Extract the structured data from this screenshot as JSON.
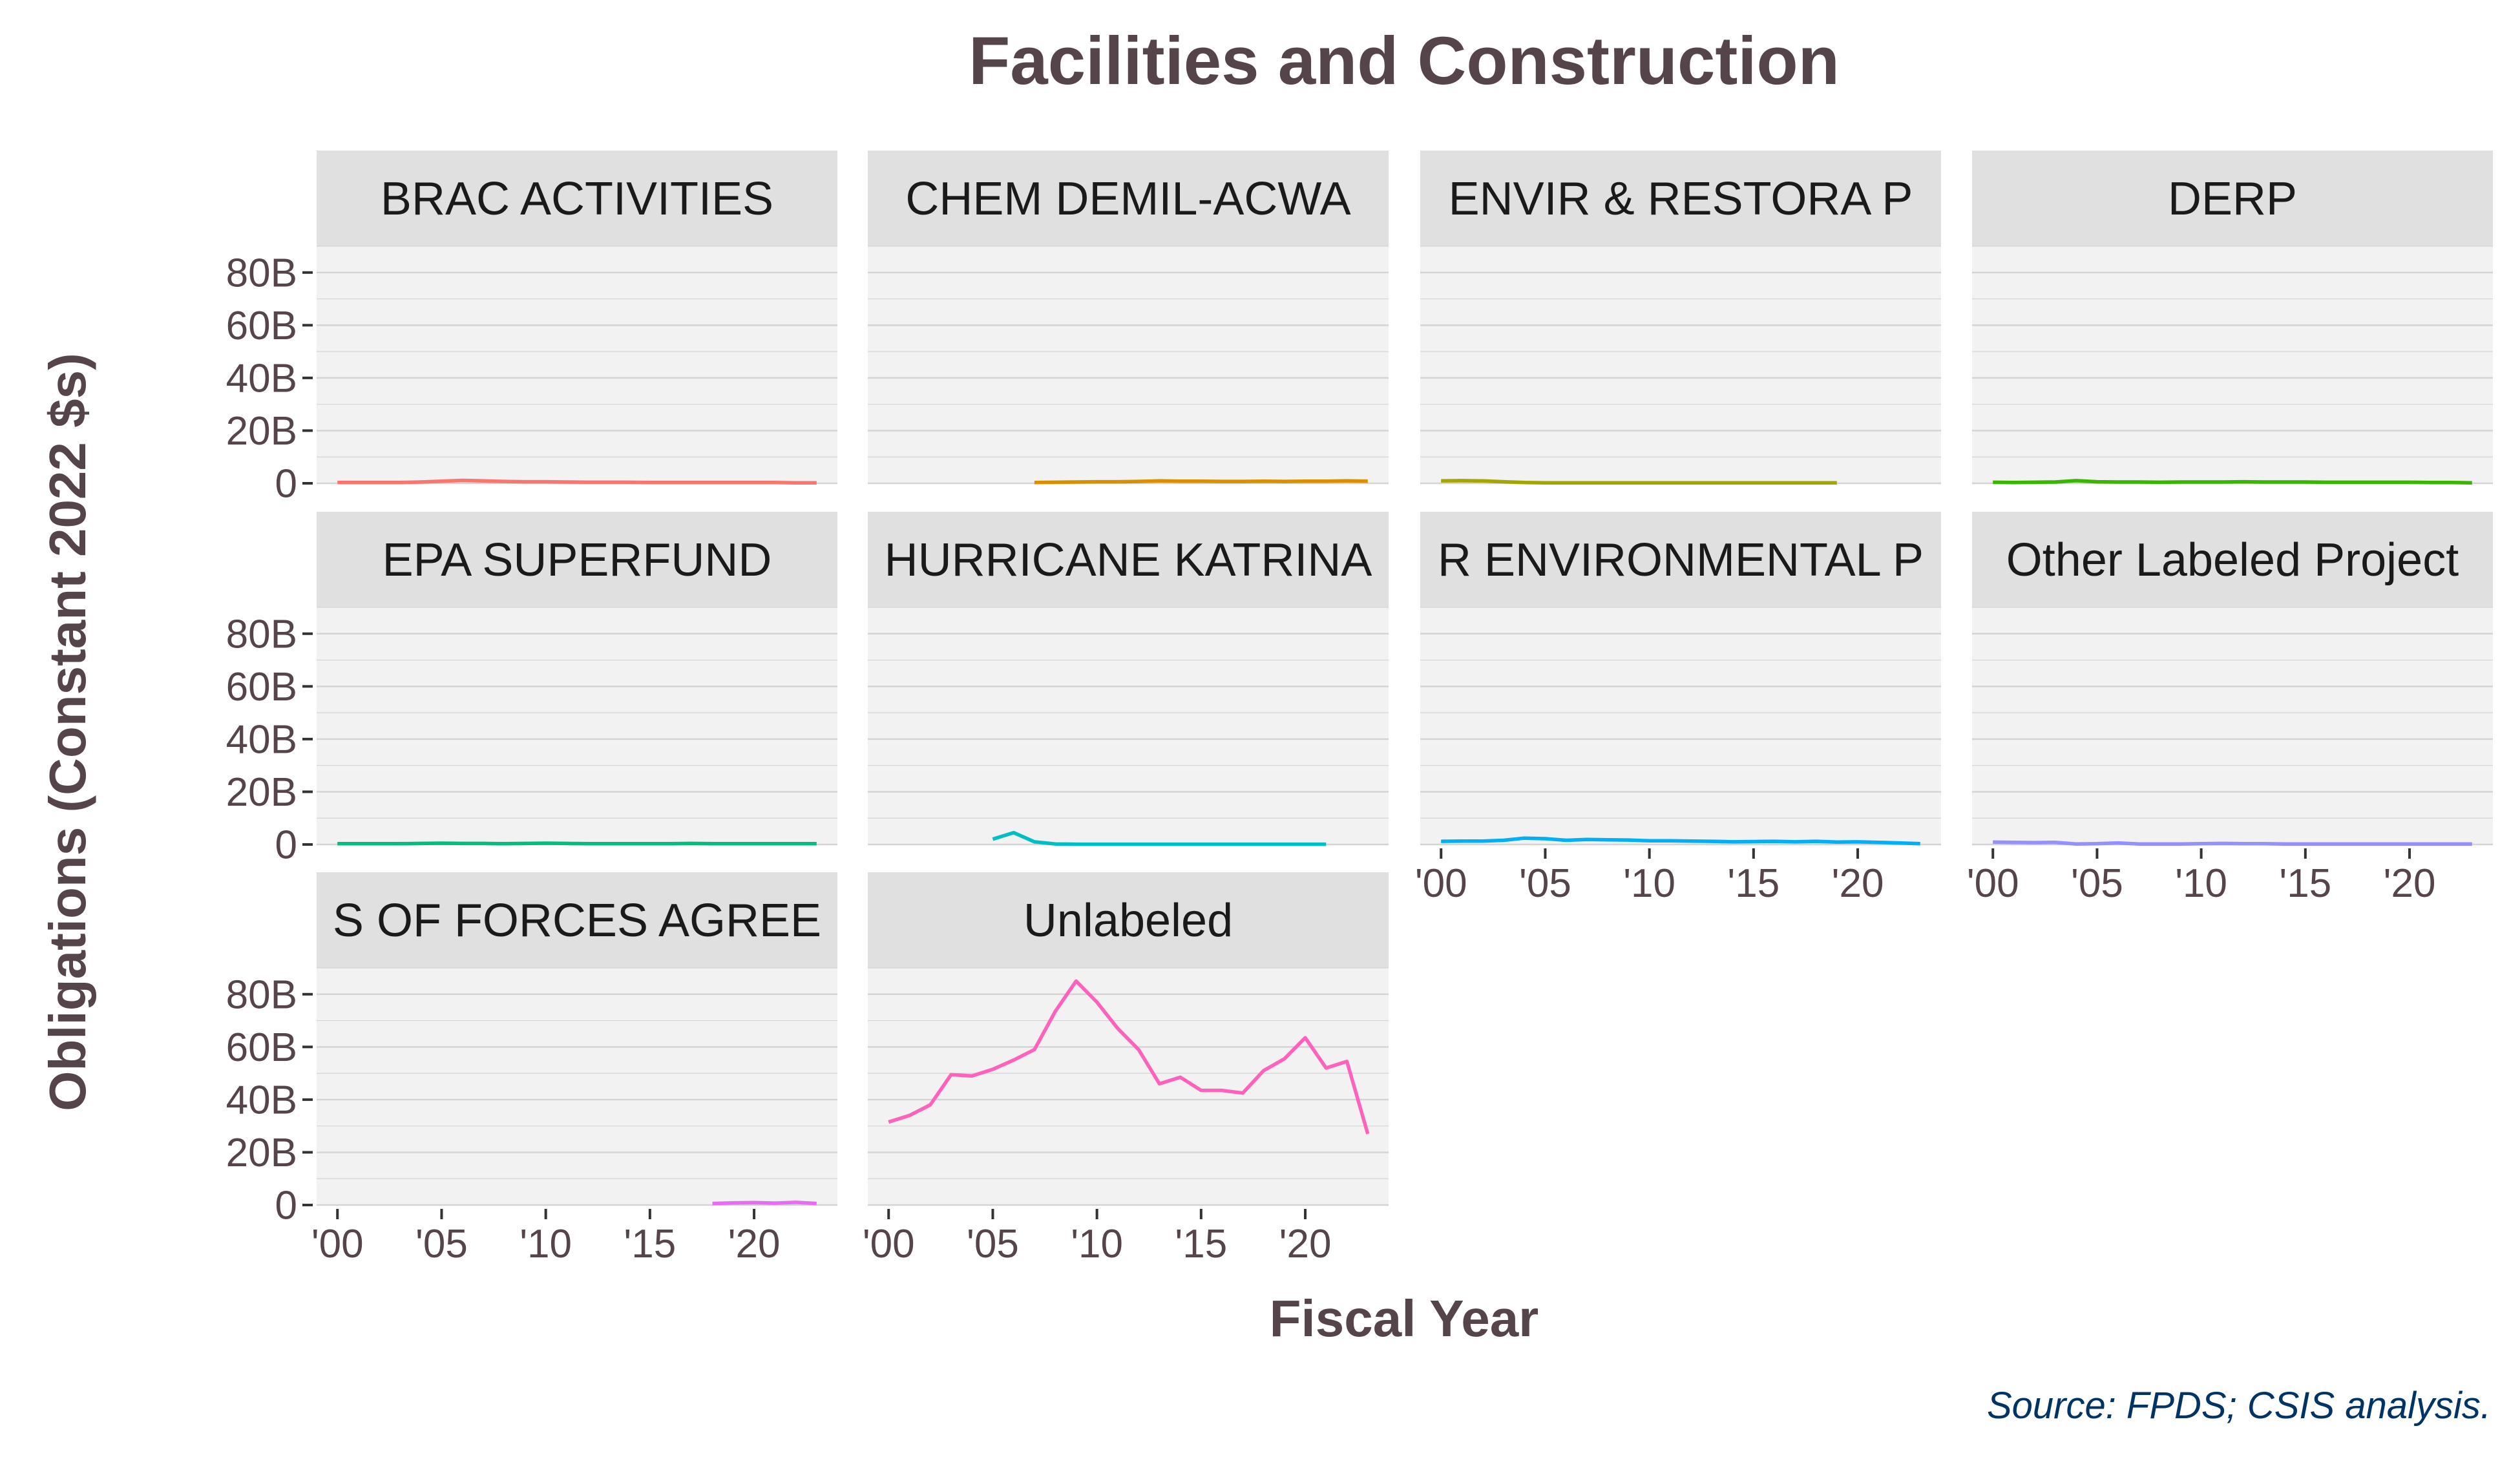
{
  "chart_data": {
    "type": "line",
    "layout": "facet-grid",
    "title": "Facilities and Construction",
    "xlabel": "Fiscal Year",
    "ylabel": "Obligations (Constant 2022 $s)",
    "caption": "Source: FPDS; CSIS analysis.",
    "xlim": [
      1999,
      2024
    ],
    "ylim": [
      0,
      90
    ],
    "x_ticks": [
      2000,
      2005,
      2010,
      2015,
      2020
    ],
    "x_tick_labels": [
      "'00",
      "'05",
      "'10",
      "'15",
      "'20"
    ],
    "y_ticks": [
      0,
      20,
      40,
      60,
      80
    ],
    "y_tick_labels": [
      "0",
      "20B",
      "40B",
      "60B",
      "80B"
    ],
    "y_unit": "billions of constant 2022 dollars",
    "grid": true,
    "legend": "none",
    "colors": {
      "panel_background": "#f2f2f2",
      "strip_background": "#e0e0e0",
      "gridline": "#d4d4d4",
      "axis_text": "#554449",
      "caption": "#003366"
    },
    "panels": [
      {
        "strip_label": "BRAC ACTIVITIES",
        "color": "#f8766d",
        "x": [
          2000,
          2001,
          2002,
          2003,
          2004,
          2005,
          2006,
          2007,
          2008,
          2009,
          2010,
          2011,
          2012,
          2013,
          2014,
          2015,
          2016,
          2017,
          2018,
          2019,
          2020,
          2021,
          2022,
          2023
        ],
        "y": [
          0.3,
          0.3,
          0.3,
          0.3,
          0.5,
          0.8,
          1.1,
          0.9,
          0.7,
          0.6,
          0.6,
          0.5,
          0.4,
          0.4,
          0.4,
          0.3,
          0.3,
          0.3,
          0.3,
          0.3,
          0.3,
          0.3,
          0.2,
          0.2
        ]
      },
      {
        "strip_label": "CHEM DEMIL-ACWA",
        "color": "#d89000",
        "x": [
          2007,
          2008,
          2009,
          2010,
          2011,
          2012,
          2013,
          2014,
          2015,
          2016,
          2017,
          2018,
          2019,
          2020,
          2021,
          2022,
          2023
        ],
        "y": [
          0.3,
          0.4,
          0.5,
          0.6,
          0.6,
          0.7,
          0.9,
          0.8,
          0.8,
          0.7,
          0.7,
          0.8,
          0.7,
          0.8,
          0.8,
          0.9,
          0.8
        ]
      },
      {
        "strip_label": "ENVIR & RESTORA P",
        "color": "#a3a500",
        "x": [
          2000,
          2001,
          2002,
          2003,
          2004,
          2005,
          2006,
          2007,
          2008,
          2009,
          2010,
          2011,
          2012,
          2013,
          2014,
          2015,
          2016,
          2017,
          2018,
          2019
        ],
        "y": [
          0.9,
          1.0,
          0.9,
          0.6,
          0.3,
          0.2,
          0.2,
          0.2,
          0.2,
          0.2,
          0.2,
          0.2,
          0.2,
          0.2,
          0.2,
          0.2,
          0.2,
          0.2,
          0.2,
          0.2
        ]
      },
      {
        "strip_label": "DERP",
        "color": "#39b600",
        "x": [
          2000,
          2001,
          2002,
          2003,
          2004,
          2005,
          2006,
          2007,
          2008,
          2009,
          2010,
          2011,
          2012,
          2013,
          2014,
          2015,
          2016,
          2017,
          2018,
          2019,
          2020,
          2021,
          2022,
          2023
        ],
        "y": [
          0.4,
          0.3,
          0.4,
          0.5,
          1.0,
          0.6,
          0.5,
          0.5,
          0.4,
          0.5,
          0.5,
          0.5,
          0.6,
          0.5,
          0.5,
          0.5,
          0.4,
          0.4,
          0.4,
          0.4,
          0.4,
          0.3,
          0.3,
          0.2
        ]
      },
      {
        "strip_label": "EPA SUPERFUND",
        "color": "#00bf7d",
        "x": [
          2000,
          2001,
          2002,
          2003,
          2004,
          2005,
          2006,
          2007,
          2008,
          2009,
          2010,
          2011,
          2012,
          2013,
          2014,
          2015,
          2016,
          2017,
          2018,
          2019,
          2020,
          2021,
          2022,
          2023
        ],
        "y": [
          0.3,
          0.3,
          0.3,
          0.3,
          0.4,
          0.5,
          0.4,
          0.4,
          0.3,
          0.4,
          0.5,
          0.4,
          0.3,
          0.3,
          0.3,
          0.3,
          0.3,
          0.4,
          0.3,
          0.3,
          0.3,
          0.3,
          0.3,
          0.3
        ]
      },
      {
        "strip_label": "HURRICANE KATRINA",
        "color": "#00bfc4",
        "x": [
          2005,
          2006,
          2007,
          2008,
          2009,
          2010,
          2011,
          2012,
          2013,
          2014,
          2015,
          2016,
          2017,
          2018,
          2019,
          2020,
          2021
        ],
        "y": [
          2.0,
          4.5,
          1.0,
          0.2,
          0.1,
          0.1,
          0.1,
          0.1,
          0.1,
          0.1,
          0.1,
          0.1,
          0.1,
          0.1,
          0.1,
          0.1,
          0.1
        ]
      },
      {
        "strip_label": "R ENVIRONMENTAL P",
        "color": "#00b0f6",
        "x": [
          2000,
          2001,
          2002,
          2003,
          2004,
          2005,
          2006,
          2007,
          2008,
          2009,
          2010,
          2011,
          2012,
          2013,
          2014,
          2015,
          2016,
          2017,
          2018,
          2019,
          2020,
          2021,
          2022,
          2023
        ],
        "y": [
          1.2,
          1.3,
          1.3,
          1.6,
          2.4,
          2.2,
          1.6,
          1.9,
          1.8,
          1.7,
          1.4,
          1.4,
          1.3,
          1.2,
          1.0,
          1.1,
          1.2,
          1.0,
          1.2,
          0.9,
          1.0,
          0.8,
          0.6,
          0.3
        ]
      },
      {
        "strip_label": "Other Labeled Project",
        "color": "#9590ff",
        "x": [
          2000,
          2001,
          2002,
          2003,
          2004,
          2005,
          2006,
          2007,
          2008,
          2009,
          2010,
          2011,
          2012,
          2013,
          2014,
          2015,
          2016,
          2017,
          2018,
          2019,
          2020,
          2021,
          2022,
          2023
        ],
        "y": [
          0.9,
          0.8,
          0.7,
          0.8,
          0.2,
          0.3,
          0.6,
          0.2,
          0.2,
          0.2,
          0.3,
          0.4,
          0.3,
          0.3,
          0.2,
          0.2,
          0.2,
          0.2,
          0.2,
          0.2,
          0.2,
          0.2,
          0.2,
          0.2
        ]
      },
      {
        "strip_label": "S OF FORCES AGREE",
        "color": "#e76bf3",
        "x": [
          2018,
          2019,
          2020,
          2021,
          2022,
          2023
        ],
        "y": [
          0.6,
          0.8,
          0.9,
          0.7,
          1.0,
          0.6
        ]
      },
      {
        "strip_label": "Unlabeled",
        "color": "#ff62bc",
        "x": [
          2000,
          2001,
          2002,
          2003,
          2004,
          2005,
          2006,
          2007,
          2008,
          2009,
          2010,
          2011,
          2012,
          2013,
          2014,
          2015,
          2016,
          2017,
          2018,
          2019,
          2020,
          2021,
          2022,
          2023
        ],
        "y": [
          31.5,
          34,
          38,
          49.5,
          49,
          51.5,
          55,
          59,
          73.5,
          85,
          77,
          67,
          59,
          46,
          48.5,
          43.5,
          43.5,
          42.5,
          51,
          55.5,
          63.5,
          52,
          54.5,
          27
        ]
      }
    ]
  }
}
